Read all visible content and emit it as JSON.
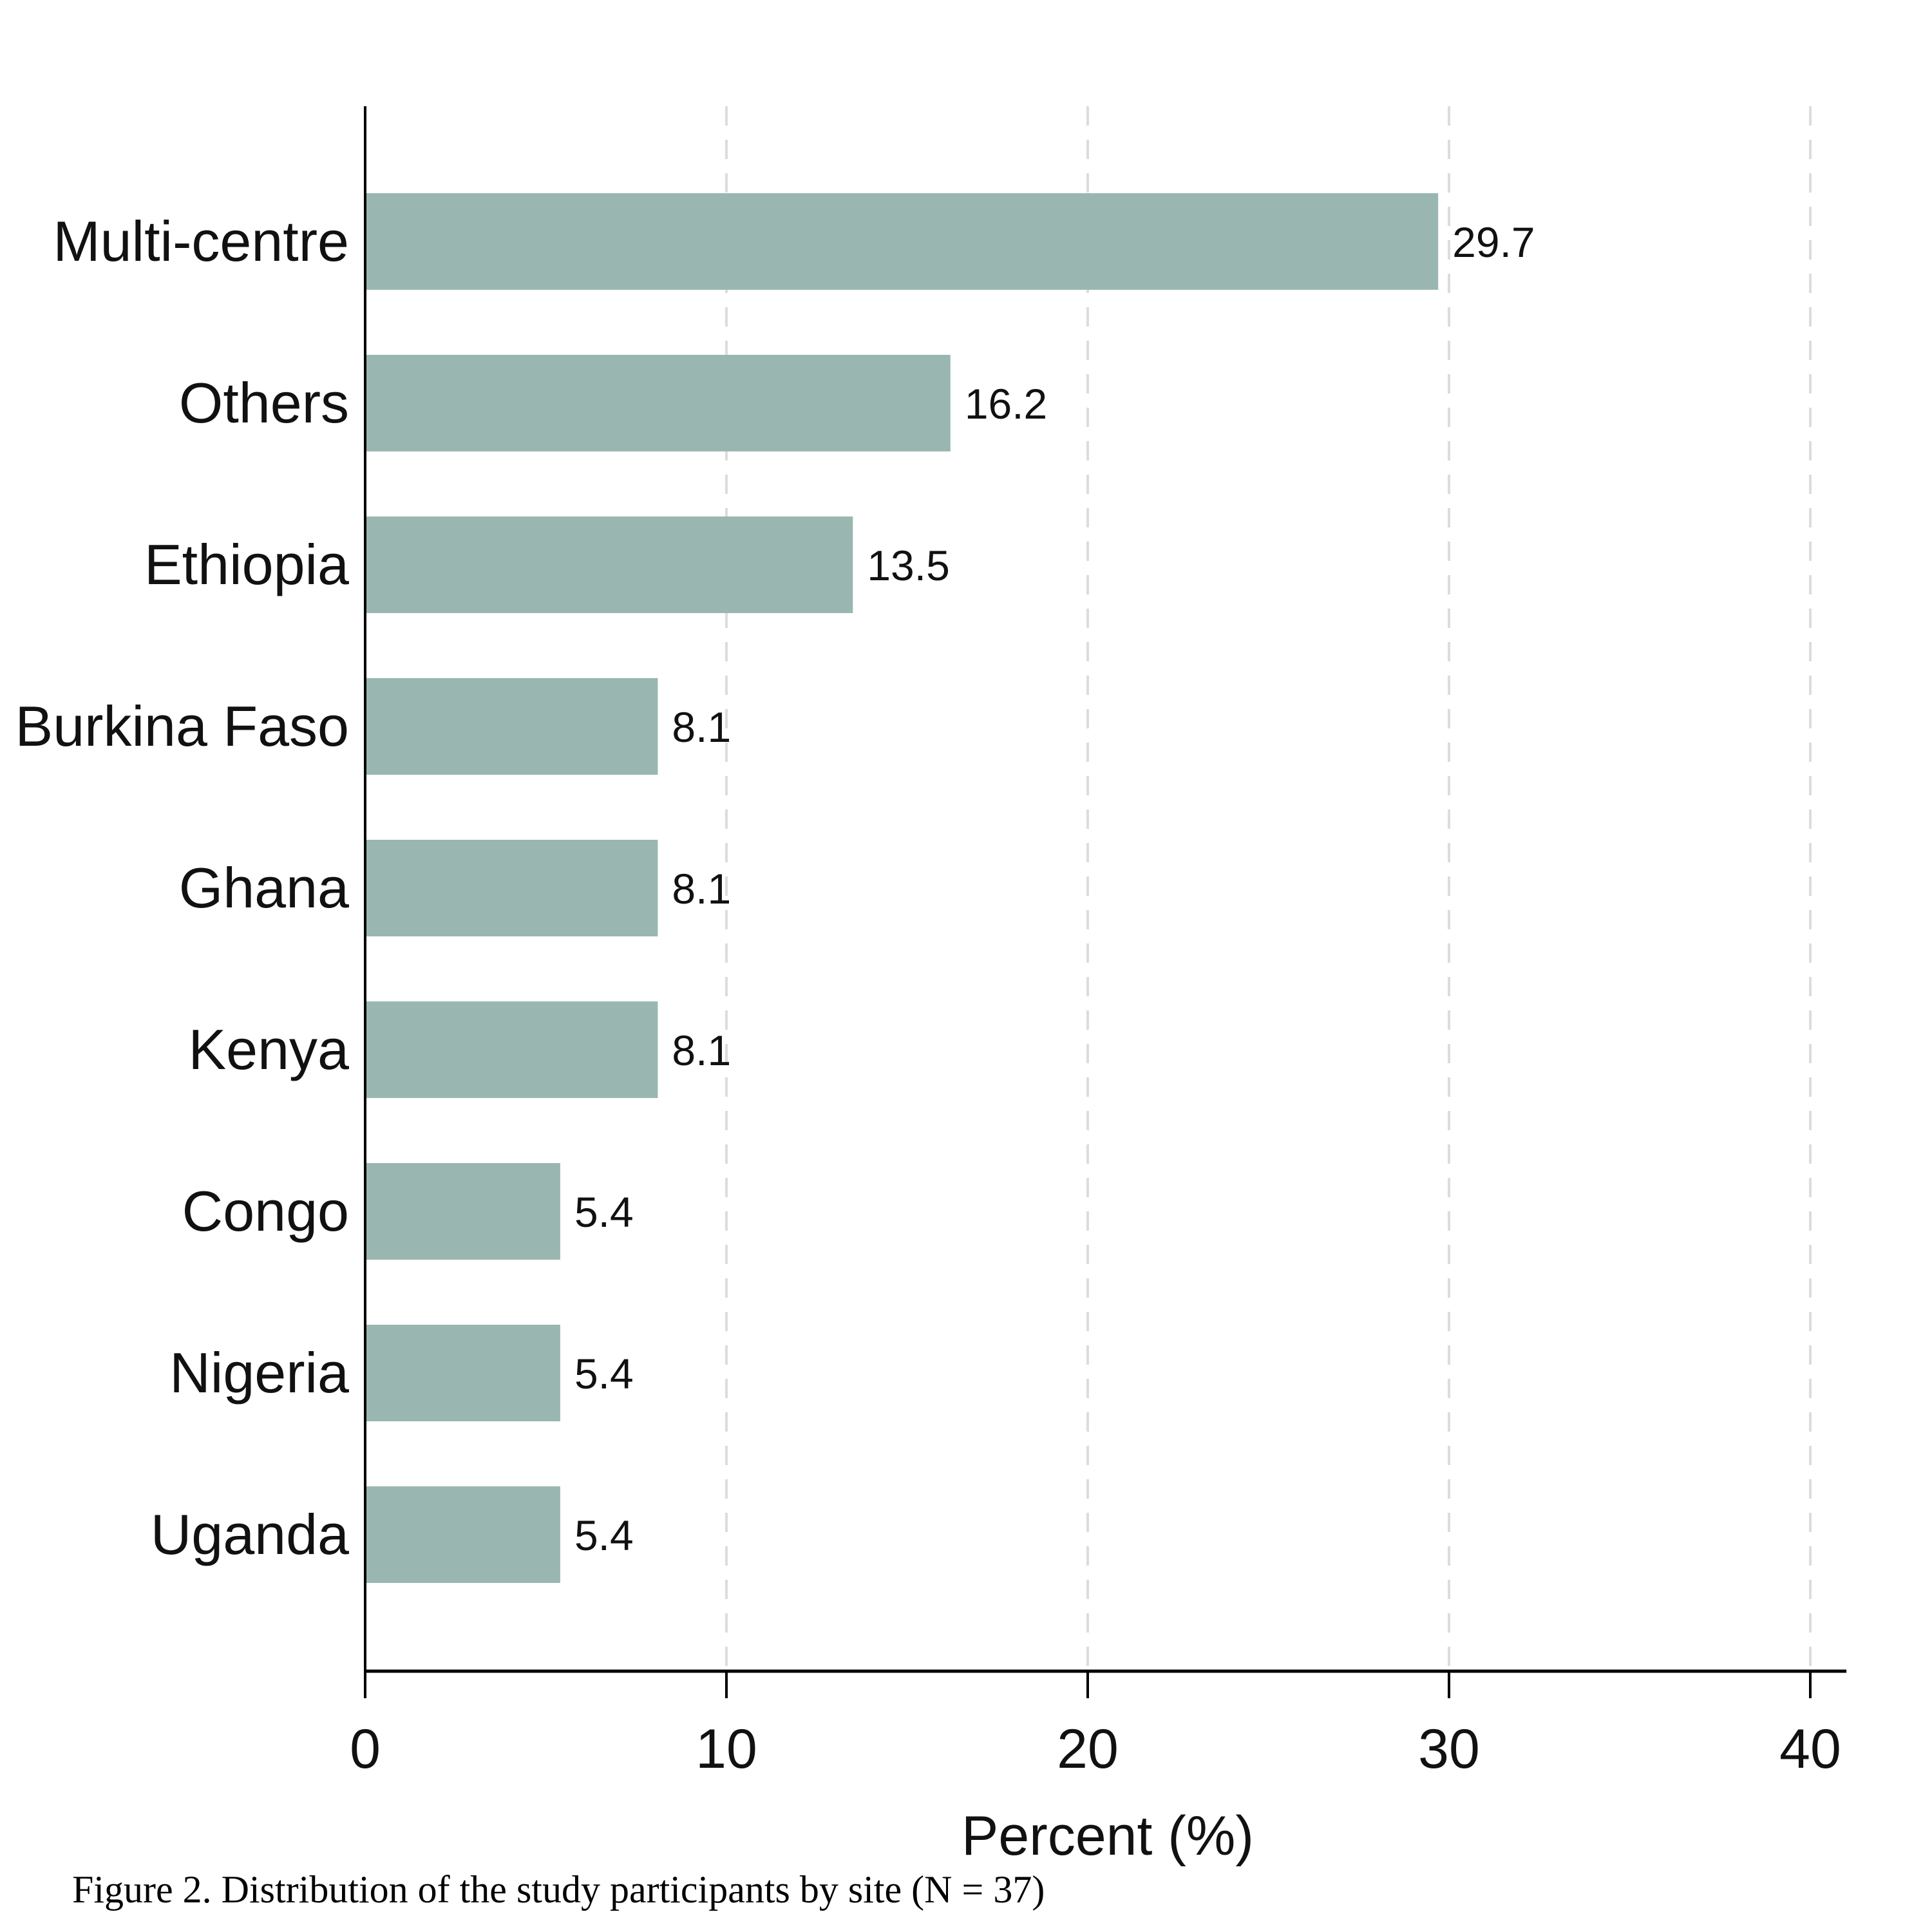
{
  "caption": "Figure 2. Distribution of the study participants by site (N = 37)",
  "chart_data": {
    "type": "bar",
    "orientation": "horizontal",
    "categories": [
      "Multi-centre",
      "Others",
      "Ethiopia",
      "Burkina Faso",
      "Ghana",
      "Kenya",
      "Congo",
      "Nigeria",
      "Uganda"
    ],
    "values": [
      29.7,
      16.2,
      13.5,
      8.1,
      8.1,
      8.1,
      5.4,
      5.4,
      5.4
    ],
    "value_labels": [
      "29.7",
      "16.2",
      "13.5",
      "8.1",
      "8.1",
      "8.1",
      "5.4",
      "5.4",
      "5.4"
    ],
    "xlabel": "Percent (%)",
    "ylabel": "",
    "xlim": [
      0,
      41
    ],
    "xticks": [
      0,
      10,
      20,
      30,
      40
    ],
    "xtick_labels": [
      "0",
      "10",
      "20",
      "30",
      "40"
    ],
    "grid": "vertical dashed",
    "bar_color": "#99b7b0"
  }
}
